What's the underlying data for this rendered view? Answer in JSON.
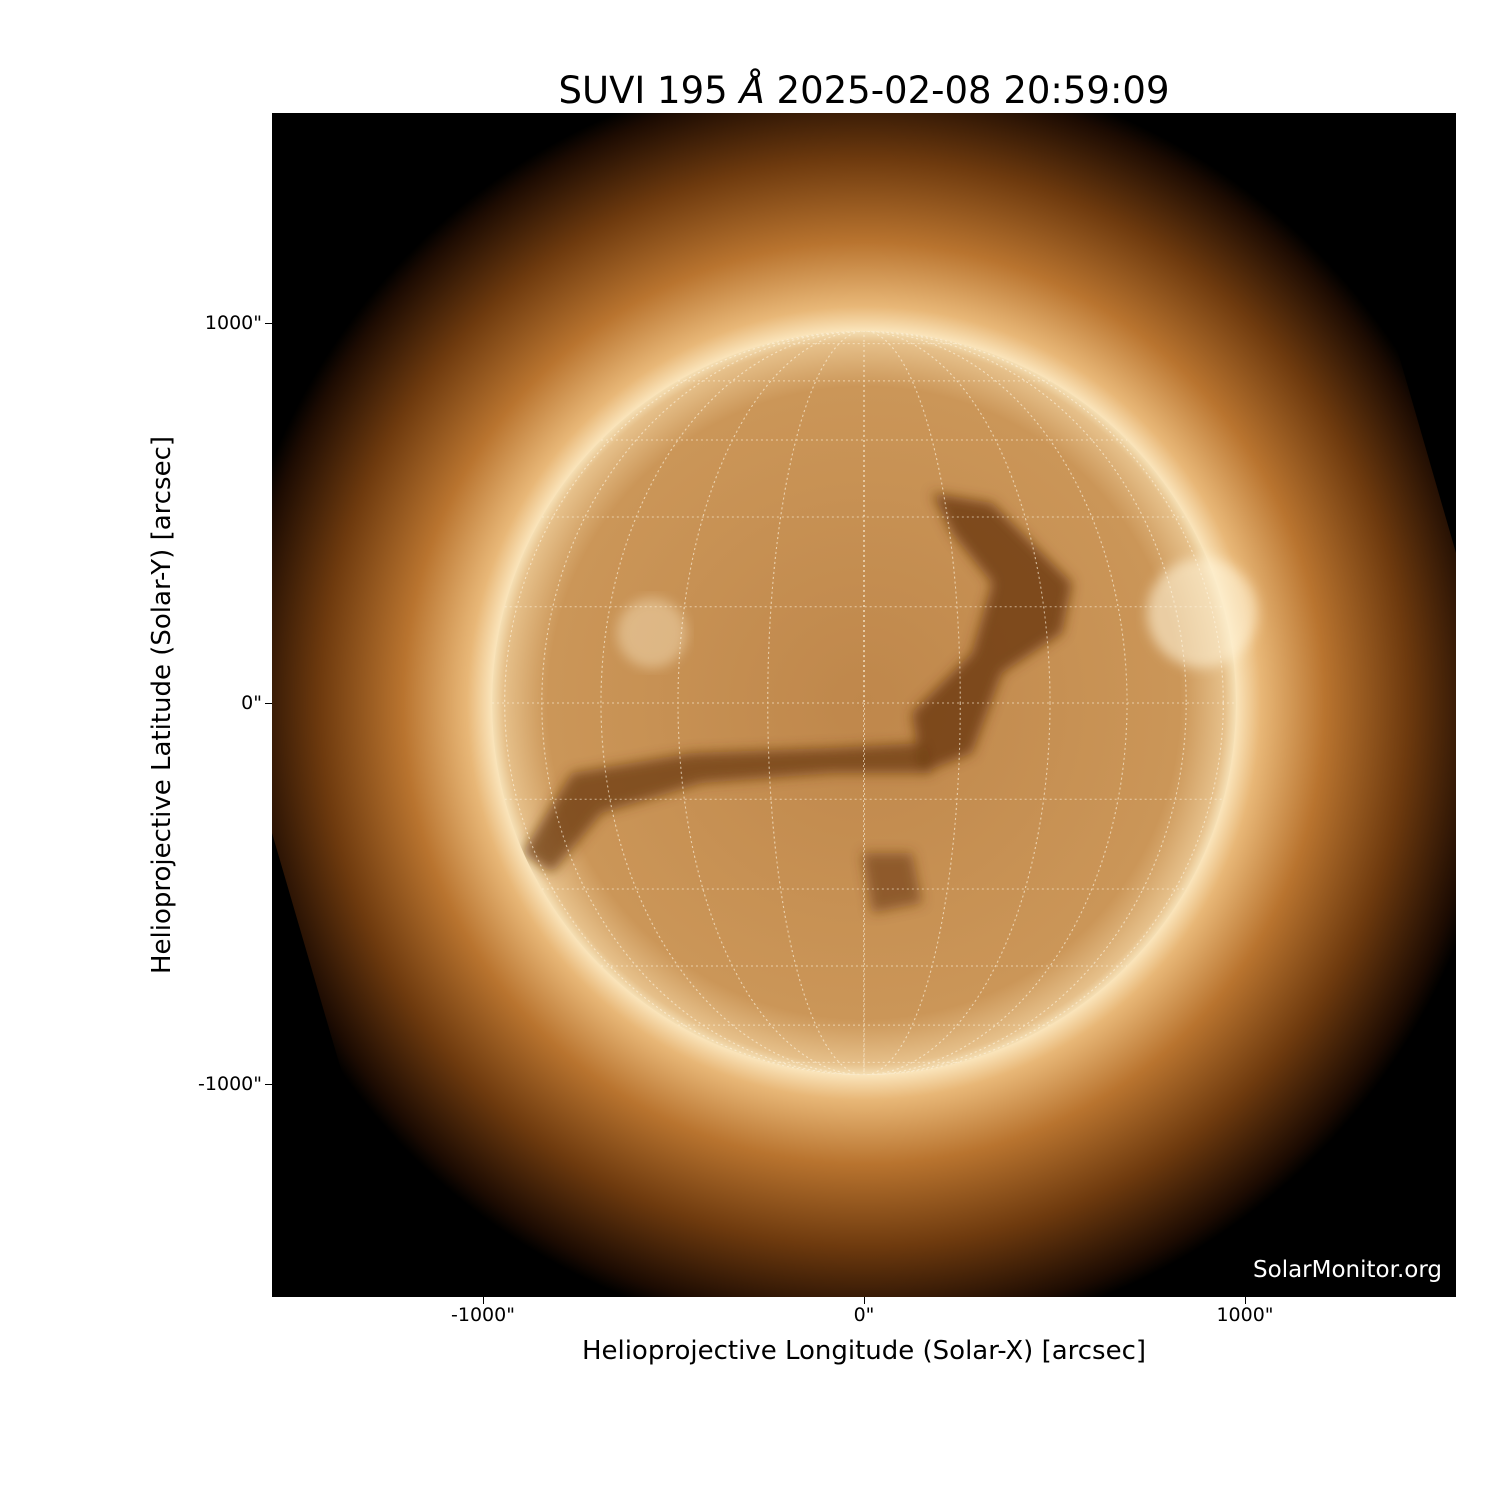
{
  "title": {
    "instrument": "SUVI 195",
    "unit": "Å",
    "datetime": "2025-02-08 20:59:09"
  },
  "axes": {
    "xlabel": "Helioprojective Longitude (Solar-X) [arcsec]",
    "ylabel": "Helioprojective Latitude (Solar-Y) [arcsec]",
    "xticks": [
      "-1000\"",
      "0\"",
      "1000\""
    ],
    "yticks": [
      "1000\"",
      "0\"",
      "-1000\""
    ],
    "xlim_arcsec": [
      -1550,
      1550
    ],
    "ylim_arcsec": [
      -1550,
      1550
    ]
  },
  "image": {
    "colormap": "sdoaia193-like copper",
    "grid_spacing_deg": 15,
    "disk_color": "#c8914f",
    "corona_color": "#f5dfb0"
  },
  "watermark": "SolarMonitor.org"
}
